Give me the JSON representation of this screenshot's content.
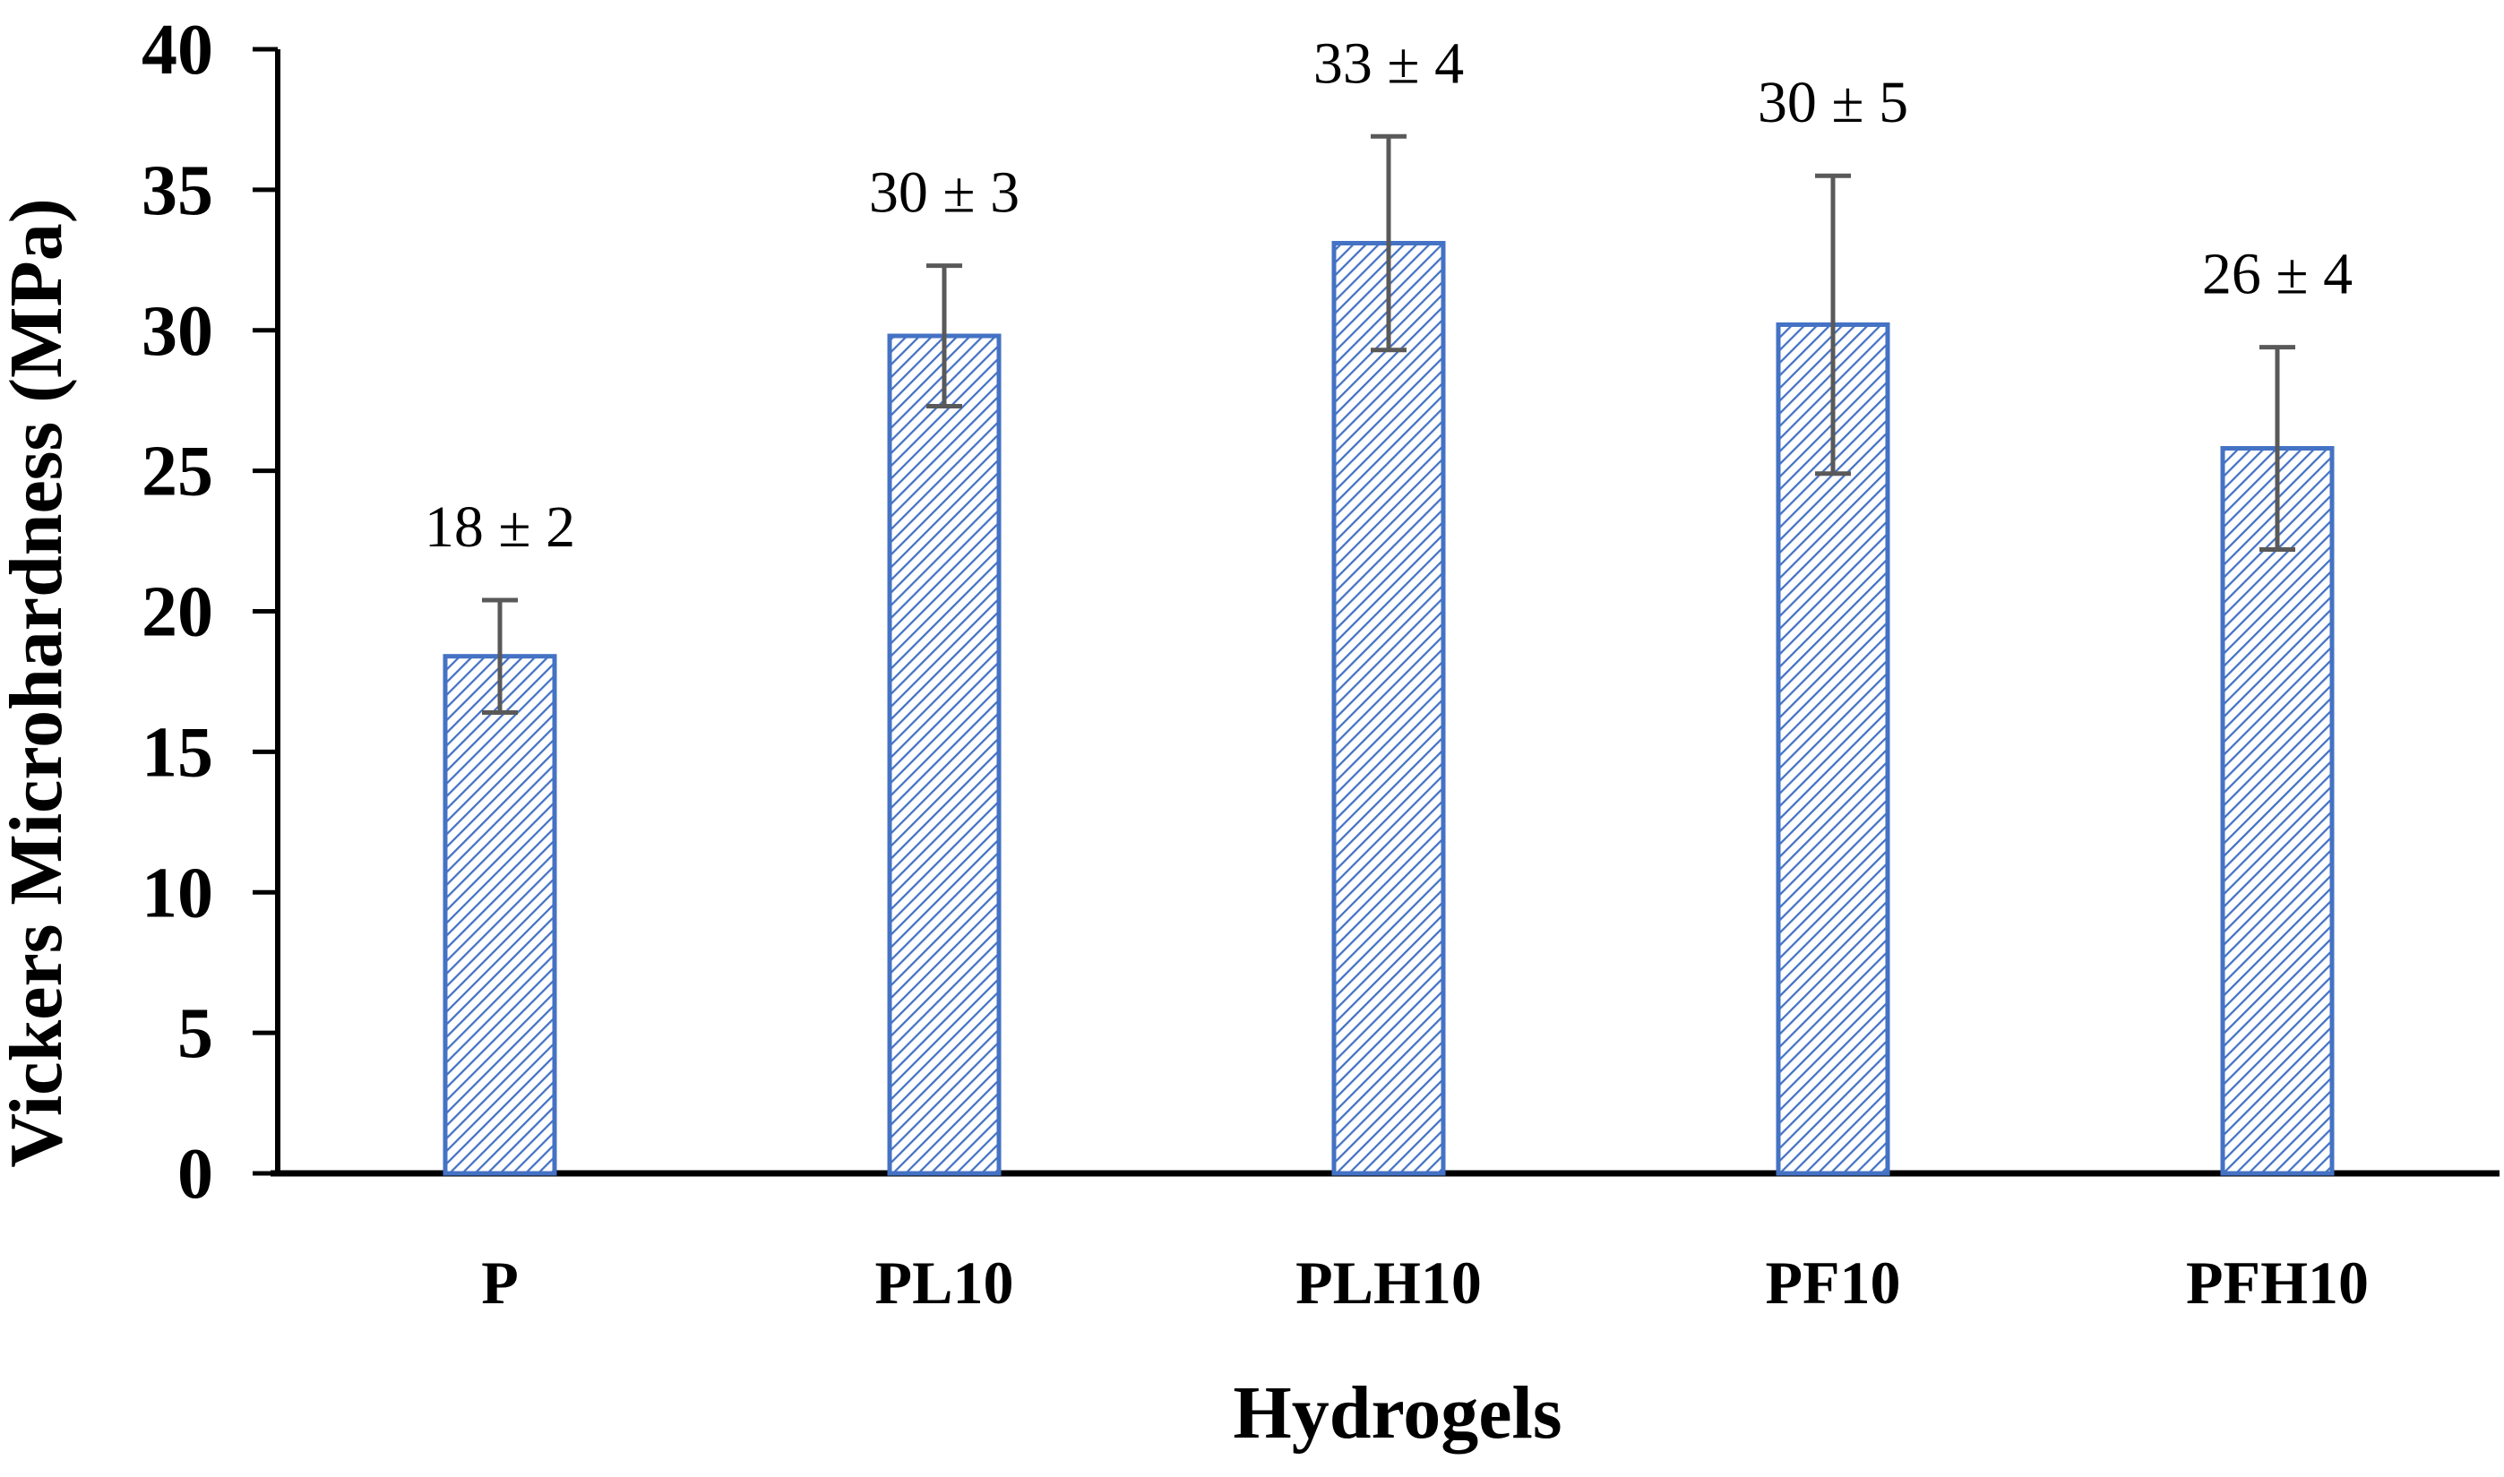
{
  "chart_data": {
    "type": "bar",
    "title": "",
    "xlabel": "Hydrogels",
    "ylabel": "Vickers Microhardness (MPa)",
    "ylim": [
      0,
      40
    ],
    "yticks": [
      0,
      5,
      10,
      15,
      20,
      25,
      30,
      35,
      40
    ],
    "categories": [
      "P",
      "PL10",
      "PLH10",
      "PF10",
      "PFH10"
    ],
    "values": [
      18.4,
      29.8,
      33.1,
      30.2,
      25.8
    ],
    "errors": [
      2,
      2.5,
      3.8,
      5.3,
      3.6
    ],
    "data_labels": [
      "18 ± 2",
      "30 ± 3",
      "33 ± 4",
      "30 ± 5",
      "26 ± 4"
    ],
    "grid": false,
    "colors": {
      "bar_outline": "#4472C4",
      "hatch": "#4472C4",
      "error_bar": "#595959",
      "axis": "#000000"
    }
  }
}
